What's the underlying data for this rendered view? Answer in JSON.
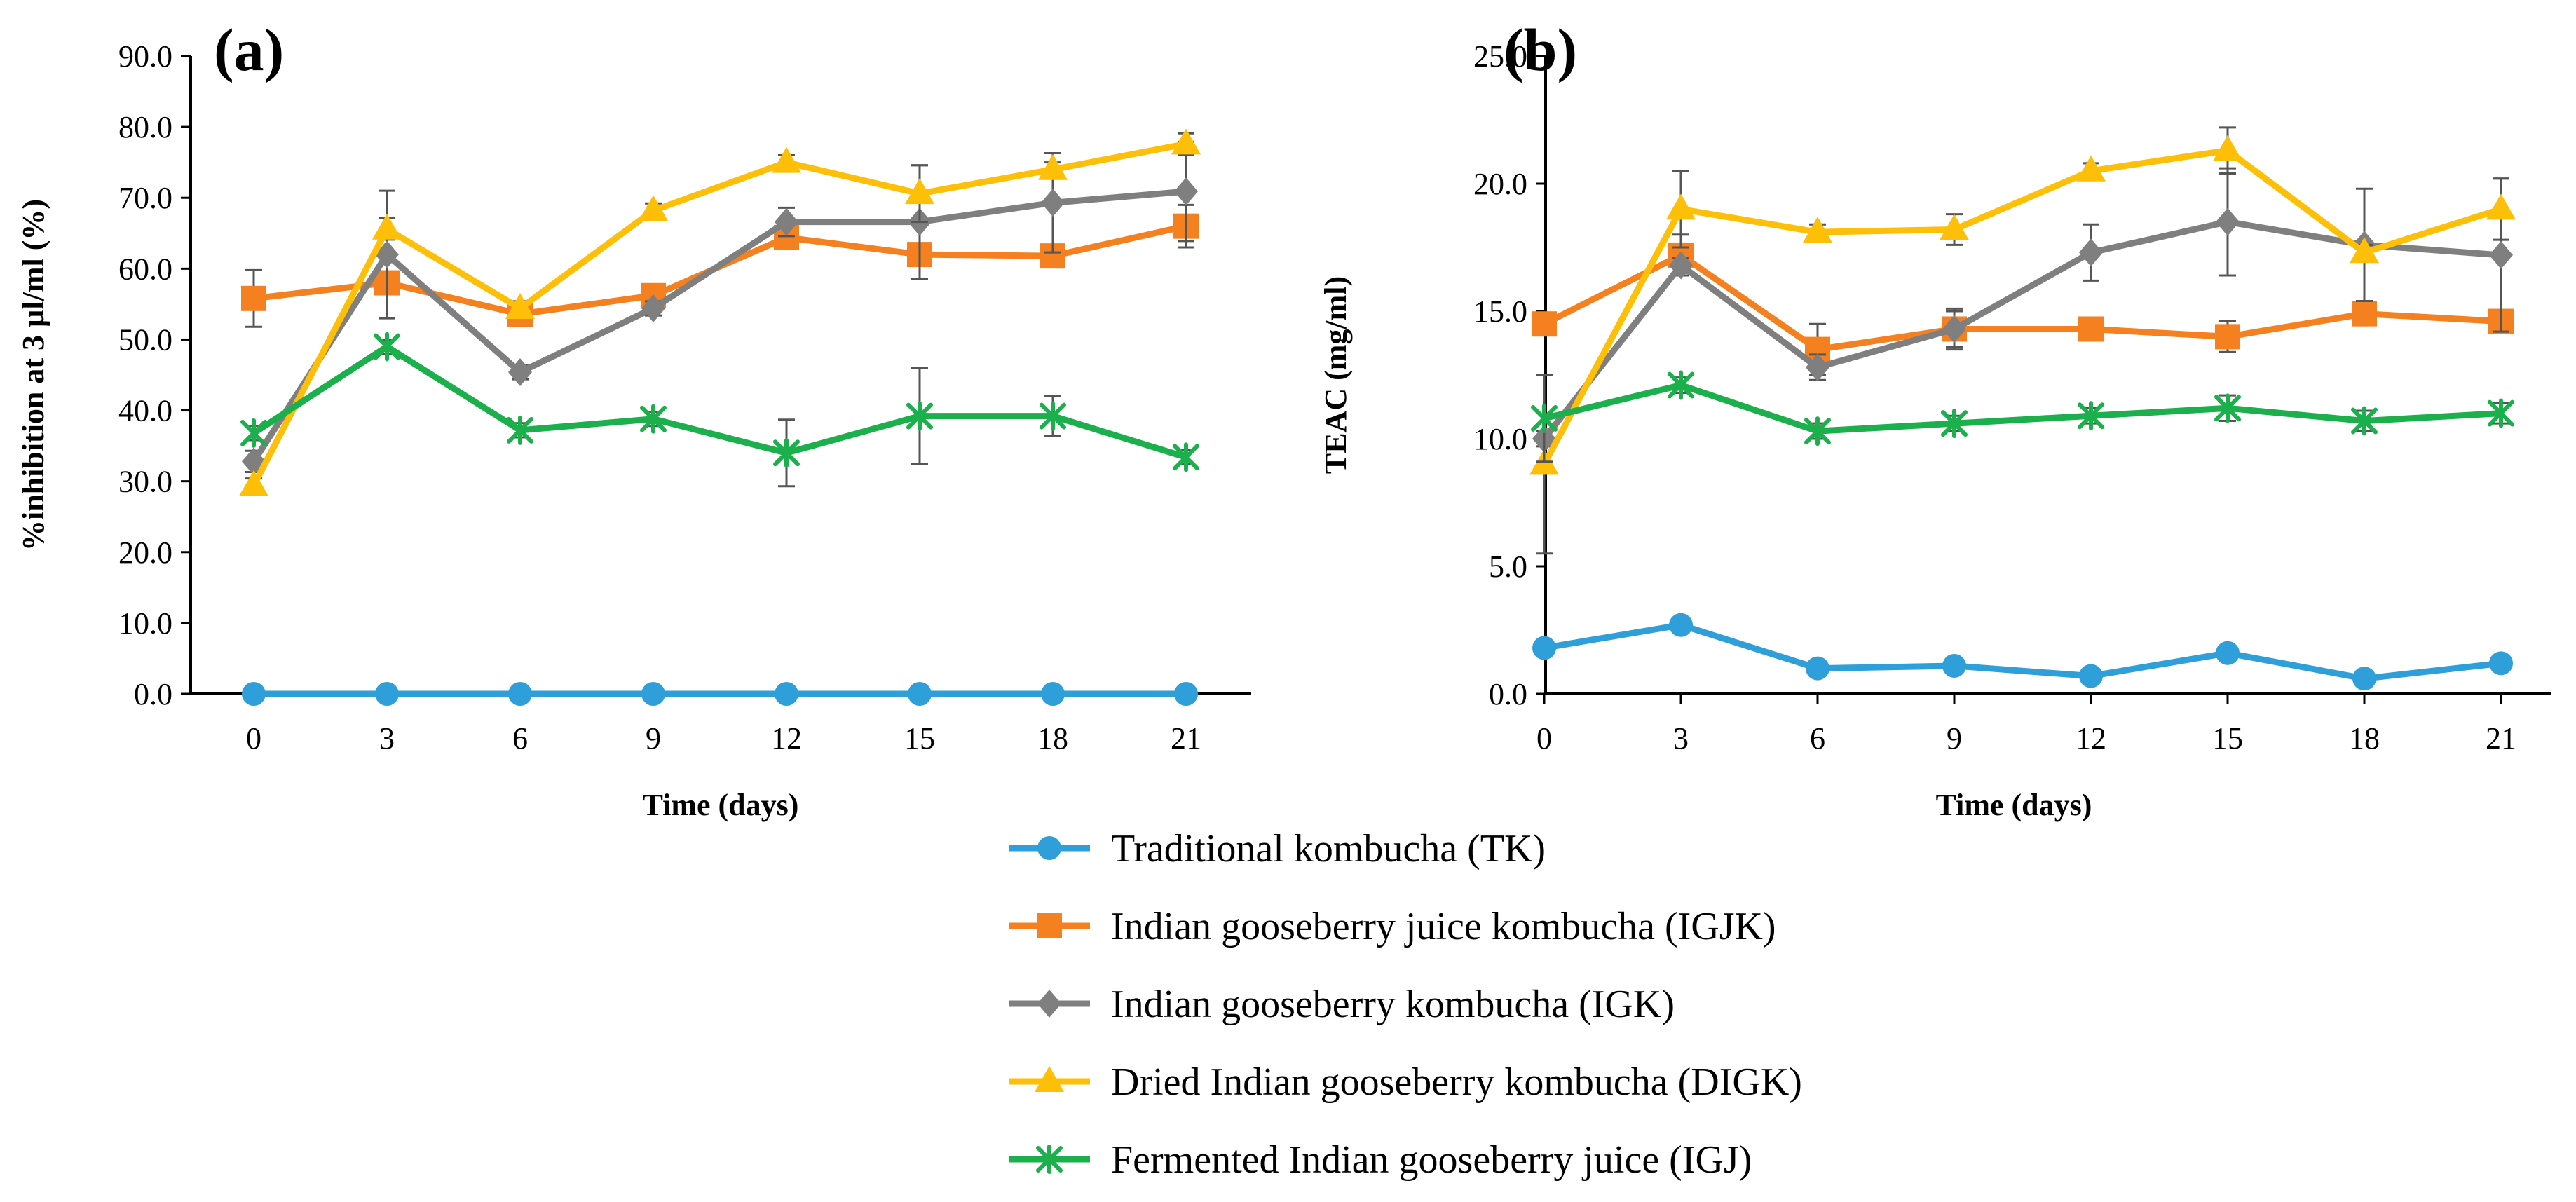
{
  "chart_data": [
    {
      "type": "line",
      "panel_label": "(a)",
      "title": "",
      "xlabel": "Time (days)",
      "ylabel": "%inhibition at 3 µl/ml (%)",
      "x": [
        0,
        3,
        6,
        9,
        12,
        15,
        18,
        21
      ],
      "x_tick_labels": [
        "0",
        "3",
        "6",
        "9",
        "12",
        "15",
        "18",
        "21"
      ],
      "ylim": [
        0,
        90
      ],
      "y_tick_values": [
        0,
        10,
        20,
        30,
        40,
        50,
        60,
        70,
        80,
        90
      ],
      "y_tick_labels": [
        "0.0",
        "10.0",
        "20.0",
        "30.0",
        "40.0",
        "50.0",
        "60.0",
        "70.0",
        "80.0",
        "90.0"
      ],
      "series": [
        {
          "key": "TK",
          "values": [
            0,
            0,
            0,
            0,
            0,
            0,
            0,
            0
          ],
          "errors": [
            0,
            0,
            0,
            0,
            0,
            0,
            0,
            0
          ]
        },
        {
          "key": "IGJK",
          "values": [
            55.8,
            58.0,
            53.6,
            56.2,
            64.4,
            62.0,
            61.8,
            66.0
          ],
          "errors": [
            4.0,
            1.5,
            1.0,
            1.0,
            1.5,
            1.5,
            1.5,
            3.0
          ]
        },
        {
          "key": "IGK",
          "values": [
            32.8,
            62.0,
            45.4,
            54.4,
            66.6,
            66.6,
            69.3,
            70.9
          ],
          "errors": [
            1.5,
            9.0,
            1.0,
            1.0,
            2.0,
            8.0,
            7.0,
            7.0
          ]
        },
        {
          "key": "DIGK",
          "values": [
            29.4,
            65.6,
            54.4,
            68.2,
            75.0,
            70.6,
            74.0,
            77.6
          ],
          "errors": [
            1.0,
            1.5,
            1.0,
            1.0,
            1.0,
            4.0,
            1.0,
            1.5
          ]
        },
        {
          "key": "IGJ",
          "values": [
            36.8,
            49.0,
            37.2,
            38.8,
            34.0,
            39.2,
            39.2,
            33.4
          ],
          "errors": [
            1.0,
            1.0,
            1.0,
            1.0,
            4.7,
            6.8,
            2.8,
            1.0
          ]
        }
      ]
    },
    {
      "type": "line",
      "panel_label": "(b)",
      "title": "",
      "xlabel": "Time (days)",
      "ylabel": "TEAC (mg/ml)",
      "x": [
        0,
        3,
        6,
        9,
        12,
        15,
        18,
        21
      ],
      "x_tick_labels": [
        "0",
        "3",
        "6",
        "9",
        "12",
        "15",
        "18",
        "21"
      ],
      "ylim": [
        0,
        25
      ],
      "y_tick_values": [
        0,
        5,
        10,
        15,
        20,
        25
      ],
      "y_tick_labels": [
        "0.0",
        "5.0",
        "10.0",
        "15.0",
        "20.0",
        "25.0"
      ],
      "series": [
        {
          "key": "TK",
          "values": [
            1.8,
            2.7,
            1.0,
            1.1,
            0.7,
            1.6,
            0.6,
            1.2
          ],
          "errors": [
            0.15,
            0.15,
            0.15,
            0.15,
            0.15,
            0.15,
            0.15,
            0.15
          ]
        },
        {
          "key": "IGJK",
          "values": [
            14.5,
            17.2,
            13.5,
            14.3,
            14.3,
            14.0,
            14.9,
            14.6
          ],
          "errors": [
            0.3,
            0.8,
            1.0,
            0.7,
            0.3,
            0.6,
            0.4,
            0.4
          ]
        },
        {
          "key": "IGK",
          "values": [
            10.0,
            16.8,
            12.8,
            14.3,
            17.3,
            18.5,
            17.6,
            17.2
          ],
          "errors": [
            0.3,
            0.3,
            0.5,
            0.8,
            1.1,
            2.1,
            2.2,
            3.0
          ]
        },
        {
          "key": "DIGK",
          "values": [
            9.0,
            19.0,
            18.1,
            18.2,
            20.5,
            21.3,
            17.3,
            19.0
          ],
          "errors": [
            3.5,
            1.5,
            0.3,
            0.6,
            0.3,
            0.9,
            0.3,
            1.2
          ]
        },
        {
          "key": "IGJ",
          "values": [
            10.8,
            12.1,
            10.3,
            10.6,
            10.9,
            11.2,
            10.7,
            11.0
          ],
          "errors": [
            1.7,
            0.3,
            0.3,
            0.3,
            0.3,
            0.5,
            0.4,
            0.4
          ]
        }
      ]
    }
  ],
  "legend": [
    {
      "key": "TK",
      "label": "Traditional kombucha (TK)",
      "color": "#2e9fd8",
      "marker": "circle"
    },
    {
      "key": "IGJK",
      "label": "Indian gooseberry juice kombucha (IGJK)",
      "color": "#f58020",
      "marker": "square"
    },
    {
      "key": "IGK",
      "label": "Indian gooseberry kombucha (IGK)",
      "color": "#7f7f7f",
      "marker": "diamond"
    },
    {
      "key": "DIGK",
      "label": "Dried Indian gooseberry kombucha (DIGK)",
      "color": "#fdbf08",
      "marker": "triangle"
    },
    {
      "key": "IGJ",
      "label": "Fermented Indian gooseberry juice (IGJ)",
      "color": "#1bb04b",
      "marker": "asterisk"
    }
  ]
}
